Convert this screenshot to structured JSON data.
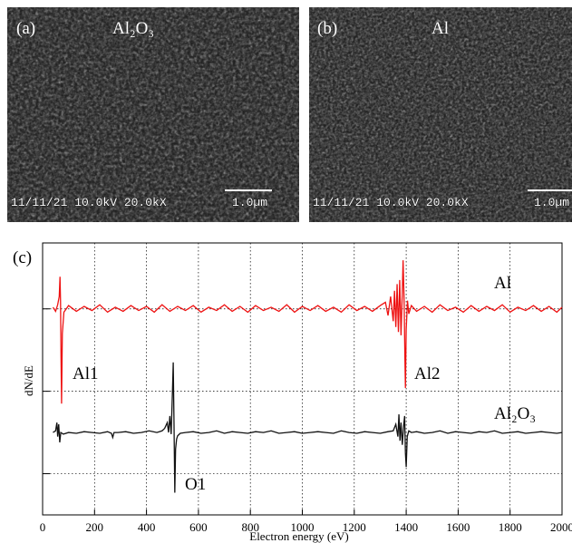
{
  "panels": [
    {
      "label": "(a)",
      "material": "Al₂O₃",
      "info": "11/11/21 10.0kV 20.0kX",
      "scale": "1.0µm"
    },
    {
      "label": "(b)",
      "material": "Al",
      "info": "11/11/21 10.0kV 20.0kX",
      "scale": "1.0µm"
    }
  ],
  "chart_data": {
    "type": "line",
    "panel_label": "(c)",
    "xlabel": "Electron energy (eV)",
    "ylabel": "dN/dE",
    "xlim": [
      0,
      2000
    ],
    "xticks": [
      0,
      200,
      400,
      600,
      800,
      1000,
      1200,
      1400,
      1600,
      1800,
      2000
    ],
    "ylim": [
      -0.5,
      2.8
    ],
    "yticks": [
      0,
      1,
      2
    ],
    "grid": true,
    "annotations": [
      "Al1",
      "Al2",
      "O1"
    ],
    "series": [
      {
        "name": "Al",
        "color": "#ee1111",
        "x": [
          40,
          50,
          58,
          64,
          67,
          69,
          71,
          73,
          76,
          82,
          100,
          130,
          160,
          190,
          220,
          250,
          280,
          310,
          340,
          370,
          400,
          430,
          460,
          490,
          520,
          550,
          580,
          610,
          640,
          670,
          700,
          730,
          760,
          790,
          820,
          850,
          880,
          910,
          940,
          970,
          1000,
          1030,
          1060,
          1090,
          1120,
          1150,
          1180,
          1210,
          1240,
          1270,
          1300,
          1320,
          1330,
          1340,
          1350,
          1355,
          1360,
          1365,
          1370,
          1375,
          1380,
          1385,
          1388,
          1392,
          1395,
          1397,
          1400,
          1405,
          1410,
          1420,
          1440,
          1470,
          1500,
          1530,
          1560,
          1590,
          1620,
          1650,
          1680,
          1710,
          1740,
          1770,
          1800,
          1830,
          1860,
          1890,
          1920,
          1950,
          1980,
          2000
        ],
        "values": [
          2.02,
          1.97,
          2.05,
          2.15,
          2.39,
          2.1,
          1.4,
          0.85,
          1.7,
          1.96,
          2.04,
          1.97,
          2.03,
          1.98,
          2.05,
          1.96,
          2.02,
          1.97,
          2.04,
          1.98,
          2.03,
          1.96,
          2.05,
          1.97,
          2.03,
          1.98,
          2.04,
          1.96,
          2.02,
          1.98,
          2.05,
          1.97,
          2.03,
          1.96,
          2.04,
          1.98,
          2.02,
          1.97,
          2.05,
          1.96,
          2.03,
          1.98,
          2.04,
          1.97,
          2.02,
          1.96,
          2.05,
          1.98,
          2.03,
          1.97,
          2.04,
          2.08,
          1.92,
          2.15,
          1.85,
          2.22,
          1.78,
          2.3,
          1.72,
          2.35,
          1.68,
          2.2,
          2.59,
          2.1,
          1.4,
          1.04,
          1.75,
          2.1,
          1.94,
          2.04,
          1.97,
          2.03,
          1.96,
          2.05,
          1.98,
          2.02,
          1.96,
          2.04,
          1.97,
          2.03,
          1.98,
          2.05,
          1.96,
          2.02,
          1.98,
          2.04,
          1.97,
          2.03,
          1.96,
          2.02
        ]
      },
      {
        "name": "Al₂O₃",
        "color": "#111111",
        "x": [
          40,
          50,
          55,
          58,
          62,
          66,
          70,
          80,
          100,
          130,
          160,
          190,
          220,
          250,
          265,
          270,
          275,
          290,
          320,
          350,
          380,
          410,
          440,
          460,
          470,
          480,
          485,
          490,
          495,
          500,
          503,
          506,
          509,
          512,
          516,
          520,
          530,
          550,
          580,
          610,
          640,
          670,
          700,
          730,
          760,
          790,
          820,
          850,
          880,
          910,
          940,
          970,
          1000,
          1030,
          1060,
          1090,
          1120,
          1150,
          1180,
          1210,
          1240,
          1270,
          1300,
          1330,
          1350,
          1360,
          1368,
          1372,
          1376,
          1380,
          1385,
          1390,
          1394,
          1397,
          1400,
          1404,
          1410,
          1420,
          1440,
          1470,
          1500,
          1530,
          1560,
          1590,
          1620,
          1650,
          1680,
          1710,
          1740,
          1770,
          1800,
          1830,
          1860,
          1890,
          1920,
          1950,
          1980,
          2000
        ],
        "values": [
          0.5,
          0.52,
          0.62,
          0.45,
          0.6,
          0.38,
          0.5,
          0.48,
          0.5,
          0.49,
          0.51,
          0.5,
          0.49,
          0.51,
          0.49,
          0.44,
          0.5,
          0.5,
          0.51,
          0.49,
          0.5,
          0.52,
          0.5,
          0.52,
          0.55,
          0.62,
          0.5,
          0.7,
          0.48,
          1.0,
          1.35,
          0.6,
          -0.23,
          0.3,
          0.42,
          0.46,
          0.49,
          0.5,
          0.51,
          0.49,
          0.5,
          0.52,
          0.49,
          0.51,
          0.5,
          0.49,
          0.51,
          0.5,
          0.52,
          0.49,
          0.5,
          0.51,
          0.49,
          0.5,
          0.51,
          0.5,
          0.49,
          0.52,
          0.5,
          0.49,
          0.51,
          0.5,
          0.49,
          0.51,
          0.52,
          0.6,
          0.45,
          0.72,
          0.4,
          0.62,
          0.35,
          0.58,
          0.7,
          0.25,
          0.08,
          0.45,
          0.52,
          0.5,
          0.51,
          0.49,
          0.5,
          0.52,
          0.49,
          0.51,
          0.5,
          0.49,
          0.51,
          0.5,
          0.52,
          0.49,
          0.5,
          0.51,
          0.49,
          0.5,
          0.51,
          0.5,
          0.49,
          0.5
        ]
      }
    ]
  }
}
